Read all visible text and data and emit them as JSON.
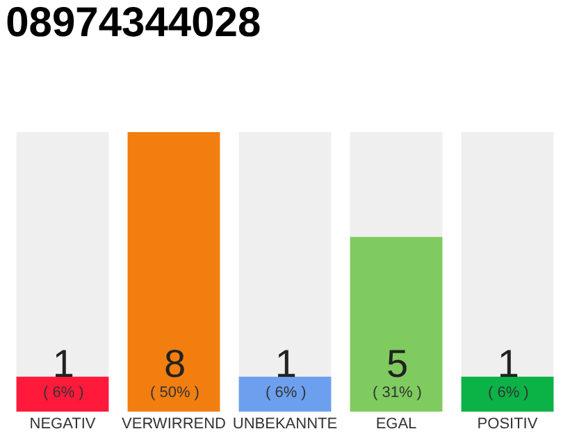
{
  "chart_data": {
    "type": "bar",
    "title": "08974344028",
    "categories": [
      "NEGATIV",
      "VERWIRREND",
      "UNBEKANNTE",
      "EGAL",
      "POSITIV"
    ],
    "values": [
      1,
      8,
      1,
      5,
      1
    ],
    "colors": [
      "#ff1a3c",
      "#f27e0f",
      "#6ca0ee",
      "#7fcb5f",
      "#0bb246"
    ],
    "value_labels": [
      "1\n( 6% )",
      "8\n( 50% )",
      "1\n( 6% )",
      "5\n( 31% )",
      "1\n( 6% )"
    ],
    "grid": false,
    "tick_labels": "x"
  }
}
